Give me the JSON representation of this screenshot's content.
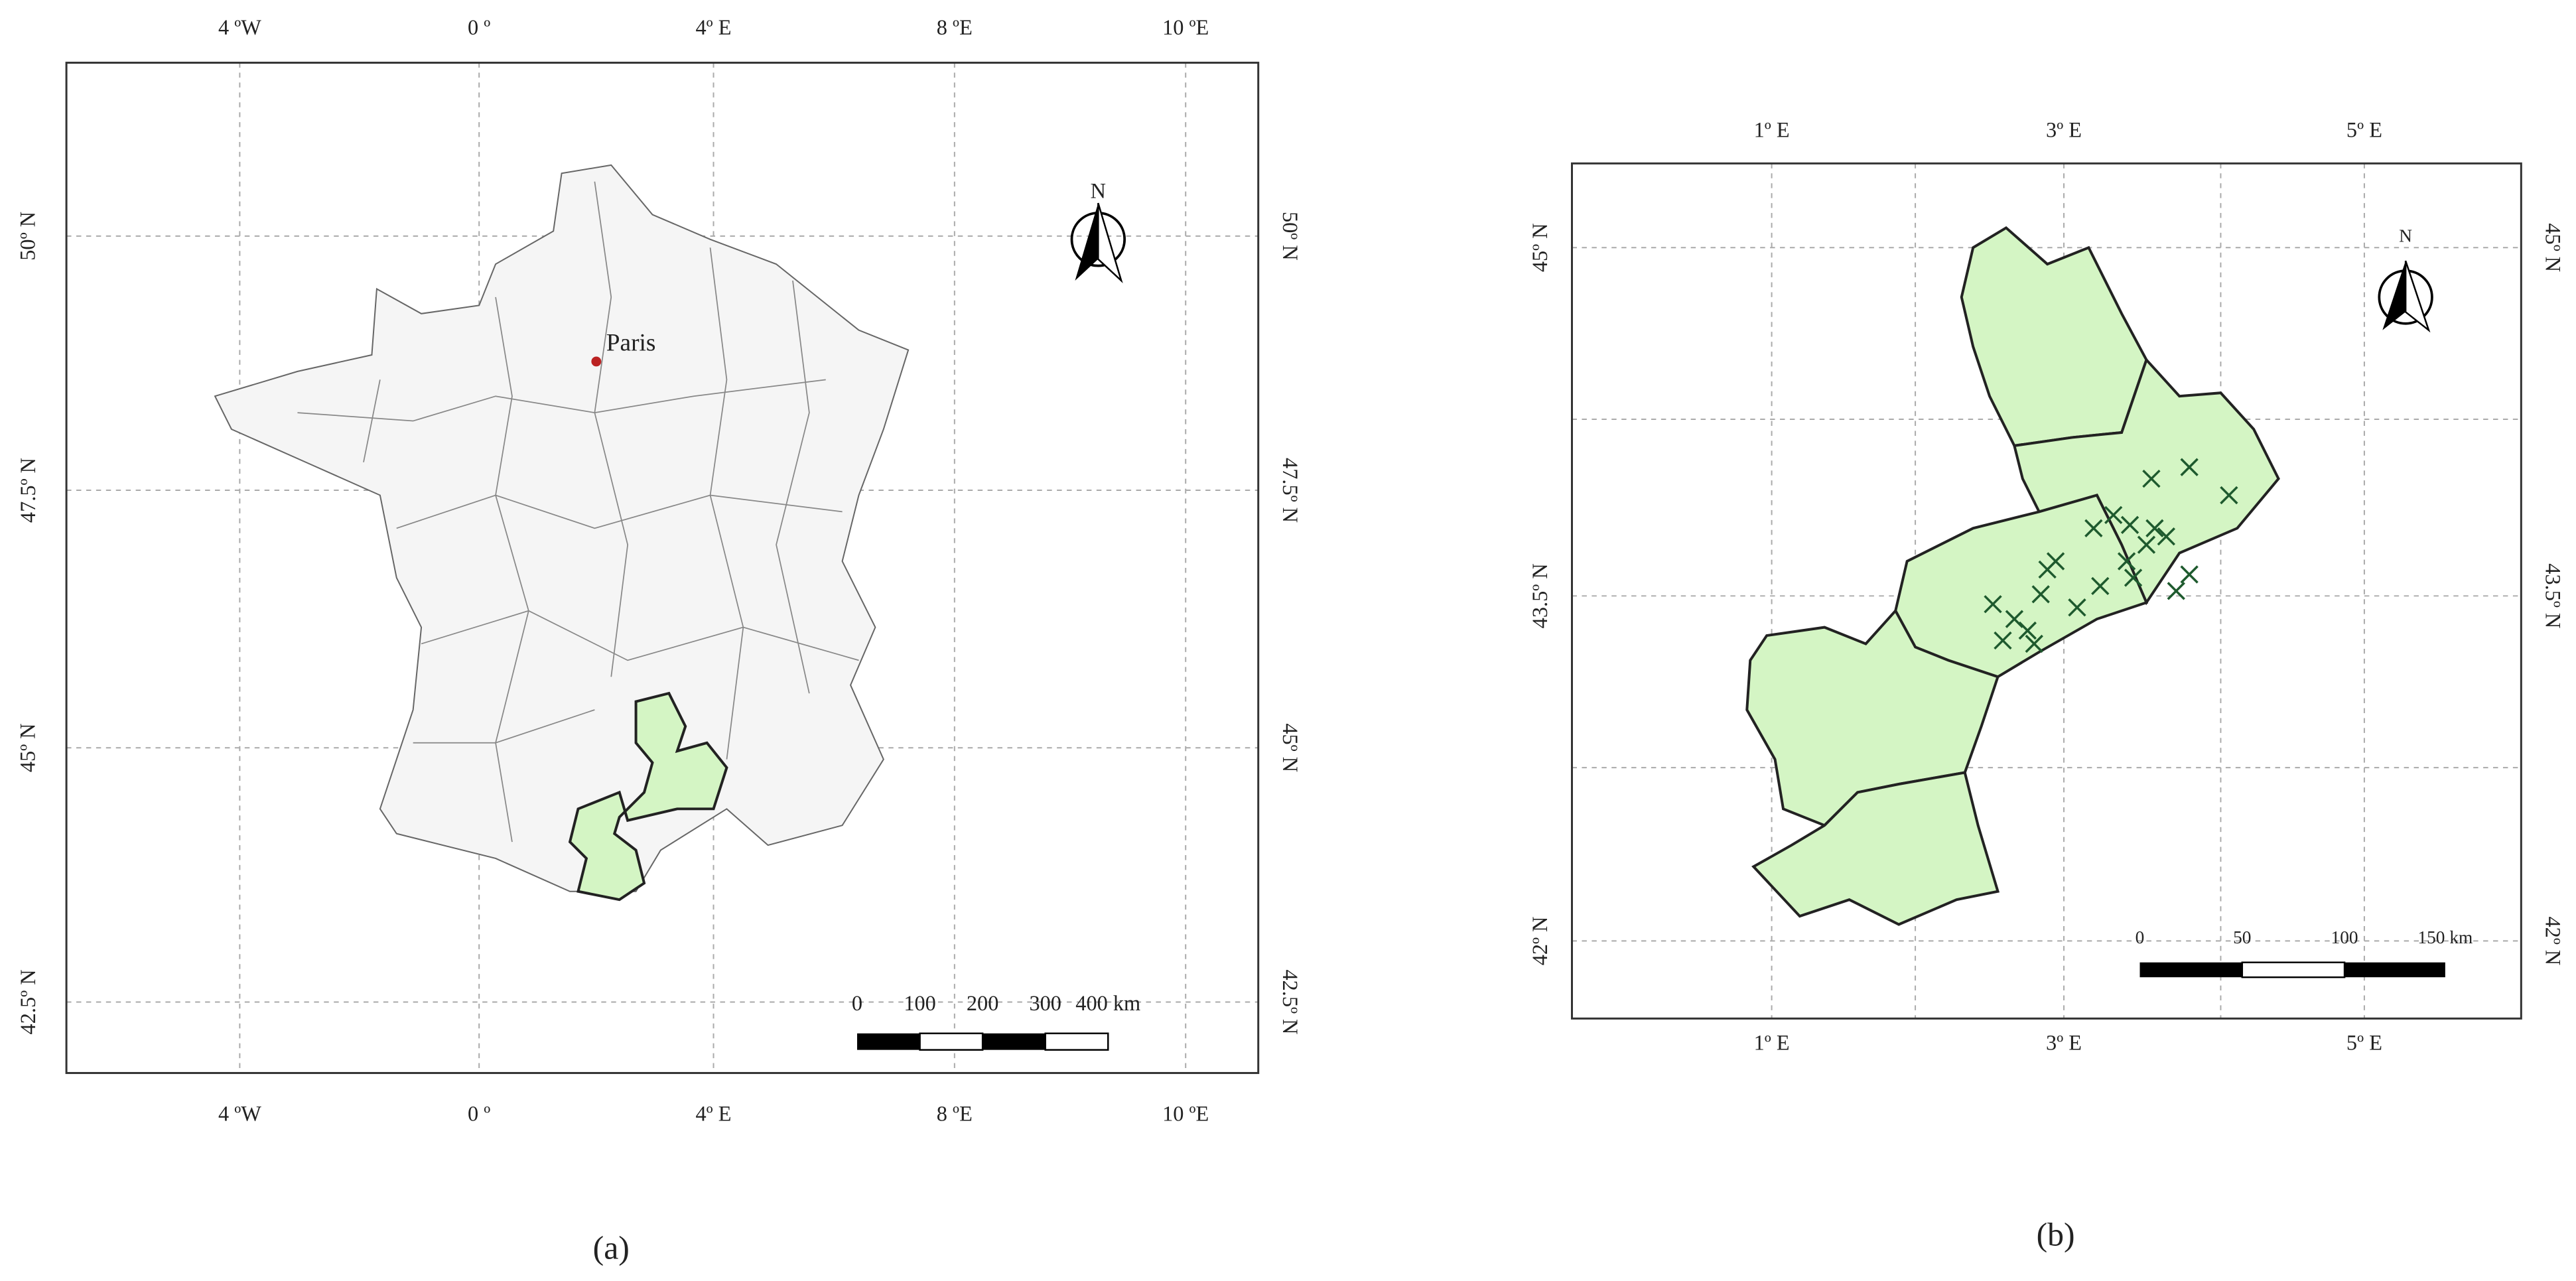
{
  "panel_a": {
    "x_labels": [
      "4 ºW",
      "0 º",
      "4º E",
      "8 ºE",
      "10 ºE"
    ],
    "y_labels": [
      "50º N",
      "47.5º N",
      "45º N",
      "42.5º N"
    ],
    "city": "Paris",
    "north": "N",
    "scale_labels": [
      "0",
      "100",
      "200",
      "300",
      "400 km"
    ],
    "caption": "(a)"
  },
  "panel_b": {
    "x_labels": [
      "1º E",
      "3º E",
      "5º E"
    ],
    "y_labels": [
      "45º N",
      "43.5º N",
      "42º N"
    ],
    "north": "N",
    "scale_labels": [
      "0",
      "50",
      "100",
      "150 km"
    ],
    "caption": "(b)"
  }
}
